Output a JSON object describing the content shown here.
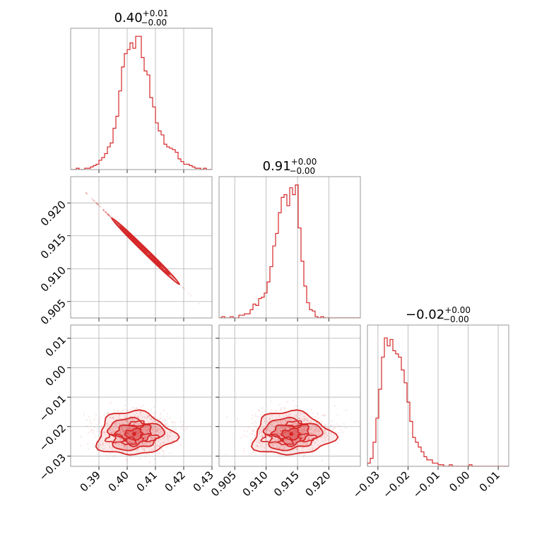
{
  "colors": {
    "series": "#d62728",
    "grid": "#b0b0b0",
    "frame": "#808080"
  },
  "chart_data": [
    {
      "type": "histogram",
      "panel": "p1-hist",
      "title": {
        "main": "0.40",
        "sup": "+0.01",
        "sub": "−0.00"
      },
      "xlim": [
        0.38,
        0.43
      ],
      "xticks": [
        0.39,
        0.4,
        0.41,
        0.42
      ],
      "bin_edges_start": 0.38,
      "bin_width": 0.001,
      "counts": [
        0,
        0,
        1,
        0,
        0,
        1,
        1,
        2,
        3,
        4,
        7,
        9,
        12,
        17,
        20,
        31,
        40,
        59,
        77,
        87,
        90,
        95,
        91,
        100,
        100,
        84,
        74,
        71,
        54,
        47,
        35,
        29,
        26,
        19,
        17,
        16,
        15,
        13,
        8,
        6,
        4,
        4,
        3,
        2,
        1,
        1,
        0,
        1,
        0,
        0
      ],
      "ylim": [
        0,
        106
      ],
      "grid": true
    },
    {
      "type": "histogram",
      "panel": "p2-hist",
      "title": {
        "main": "0.91",
        "sup": "+0.00",
        "sub": "−0.00"
      },
      "xlim": [
        0.9025,
        0.925
      ],
      "xticks": [
        0.905,
        0.91,
        0.915,
        0.92
      ],
      "bin_edges_start": 0.9025,
      "bin_width": 0.00045,
      "counts": [
        0,
        1,
        0,
        0,
        1,
        0,
        0,
        2,
        2,
        3,
        3,
        6,
        10,
        9,
        14,
        15,
        18,
        26,
        37,
        52,
        61,
        76,
        87,
        89,
        81,
        94,
        89,
        96,
        65,
        41,
        23,
        11,
        6,
        5,
        1,
        0,
        1,
        0,
        0,
        0,
        0,
        0,
        0,
        0,
        0,
        0,
        0,
        0,
        0,
        0
      ],
      "ylim": [
        0,
        102
      ],
      "grid": true
    },
    {
      "type": "histogram",
      "panel": "p3-hist",
      "title": {
        "main": "−0.02",
        "sup": "+0.00",
        "sub": "−0.00"
      },
      "xlim": [
        -0.0335,
        0.0135
      ],
      "xticks": [
        -0.03,
        -0.02,
        -0.01,
        0.0,
        0.01
      ],
      "bin_edges_start": -0.0335,
      "bin_width": 0.00094,
      "counts": [
        2,
        5,
        15,
        30,
        48,
        68,
        80,
        75,
        79,
        72,
        70,
        68,
        60,
        52,
        40,
        28,
        18,
        15,
        12,
        9,
        6,
        4,
        4,
        2,
        2,
        1,
        1,
        0,
        0,
        1,
        0,
        0,
        0,
        0,
        0,
        0,
        1,
        0,
        0,
        0,
        0,
        0,
        0,
        0,
        0,
        0,
        0,
        0,
        0,
        0
      ],
      "ylim": [
        0,
        88
      ],
      "grid": true
    },
    {
      "type": "scatter",
      "panel": "p1-vs-p2",
      "xlim": [
        0.38,
        0.43
      ],
      "ylim": [
        0.9025,
        0.924
      ],
      "xticks": [
        0.39,
        0.4,
        0.41,
        0.42
      ],
      "yticks": [
        0.905,
        0.91,
        0.915,
        0.92
      ],
      "ytick_labels": [
        "0.905",
        "0.910",
        "0.915",
        "0.920"
      ],
      "relation": {
        "x0": 0.3855,
        "y0": 0.9215,
        "x1": 0.4285,
        "y1": 0.9034,
        "contours": [
          [
            0.3945,
            0.4185
          ],
          [
            0.3975,
            0.415
          ],
          [
            0.4,
            0.412
          ]
        ]
      },
      "grid": true
    },
    {
      "type": "scatter",
      "panel": "p1-vs-p3",
      "xlim": [
        0.38,
        0.43
      ],
      "ylim": [
        -0.0335,
        0.0145
      ],
      "xticks": [
        0.39,
        0.4,
        0.41,
        0.42,
        0.43
      ],
      "xtick_labels": [
        "0.39",
        "0.40",
        "0.41",
        "0.42",
        "0.43"
      ],
      "yticks": [
        -0.03,
        -0.02,
        -0.01,
        0.0,
        0.01
      ],
      "ytick_labels": [
        "−0.03",
        "−0.02",
        "−0.01",
        "0.00",
        "0.01"
      ],
      "center": [
        0.4025,
        -0.022
      ],
      "spread": [
        0.006,
        0.0035
      ],
      "grid": true
    },
    {
      "type": "scatter",
      "panel": "p2-vs-p3",
      "xlim": [
        0.9025,
        0.925
      ],
      "ylim": [
        -0.0335,
        0.0145
      ],
      "xticks": [
        0.905,
        0.91,
        0.915,
        0.92
      ],
      "xtick_labels": [
        "0.905",
        "0.910",
        "0.915",
        "0.920"
      ],
      "center": [
        0.914,
        -0.022
      ],
      "spread": [
        0.0028,
        0.0035
      ],
      "grid": true
    },
    {
      "type": "axis-labels",
      "panel": "p3-hist-xaxis",
      "xtick_labels": [
        "−0.03",
        "−0.02",
        "−0.01",
        "0.00",
        "0.01"
      ]
    }
  ]
}
